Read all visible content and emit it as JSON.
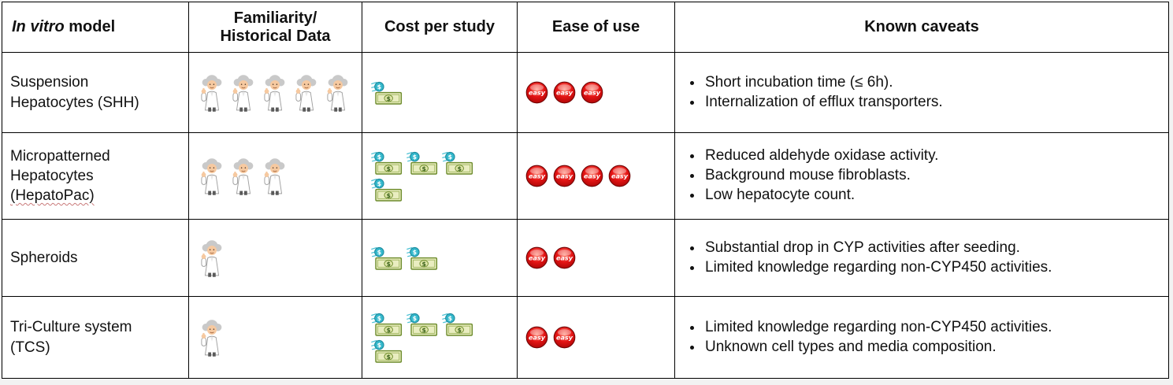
{
  "table": {
    "headers": {
      "model_italic": "In vitro",
      "model_rest": " model",
      "familiarity_line1": "Familiarity/",
      "familiarity_line2": "Historical Data",
      "cost": "Cost per study",
      "ease": "Ease of use",
      "caveats": "Known caveats"
    },
    "icons": {
      "familiarity": "scientist-icon",
      "cost": "money-bill-coin-icon",
      "ease": "easy-button-icon",
      "easy_label": "easy"
    },
    "colors": {
      "easy_red": "#d31010",
      "bill_border_green": "#6b8a2a",
      "bill_fill": "#e9edc0",
      "coin_teal": "#35b8cc",
      "hair_gray": "#c9c9c9",
      "coat_white": "#ffffff",
      "table_border": "#000000",
      "background": "#ffffff"
    },
    "rows": [
      {
        "model_lines": [
          "Suspension",
          "Hepatocytes (SHH)"
        ],
        "familiarity_count": 5,
        "cost_count": 1,
        "ease_count": 3,
        "caveats": [
          "Short incubation time (≤ 6h).",
          "Internalization of efflux transporters."
        ]
      },
      {
        "model_lines": [
          "Micropatterned",
          "Hepatocytes",
          "(HepatoPac)"
        ],
        "misspell_line_index": 2,
        "familiarity_count": 3,
        "cost_count": 4,
        "ease_count": 4,
        "caveats": [
          "Reduced aldehyde oxidase activity.",
          "Background mouse fibroblasts.",
          "Low hepatocyte count."
        ]
      },
      {
        "model_lines": [
          "Spheroids"
        ],
        "familiarity_count": 1,
        "cost_count": 2,
        "ease_count": 2,
        "caveats": [
          "Substantial drop in CYP activities after seeding.",
          "Limited knowledge regarding non-CYP450 activities."
        ]
      },
      {
        "model_lines": [
          "Tri-Culture system",
          "(TCS)"
        ],
        "familiarity_count": 1,
        "cost_count": 4,
        "ease_count": 2,
        "caveats": [
          "Limited knowledge regarding non-CYP450 activities.",
          "Unknown cell types and media composition."
        ]
      }
    ]
  }
}
